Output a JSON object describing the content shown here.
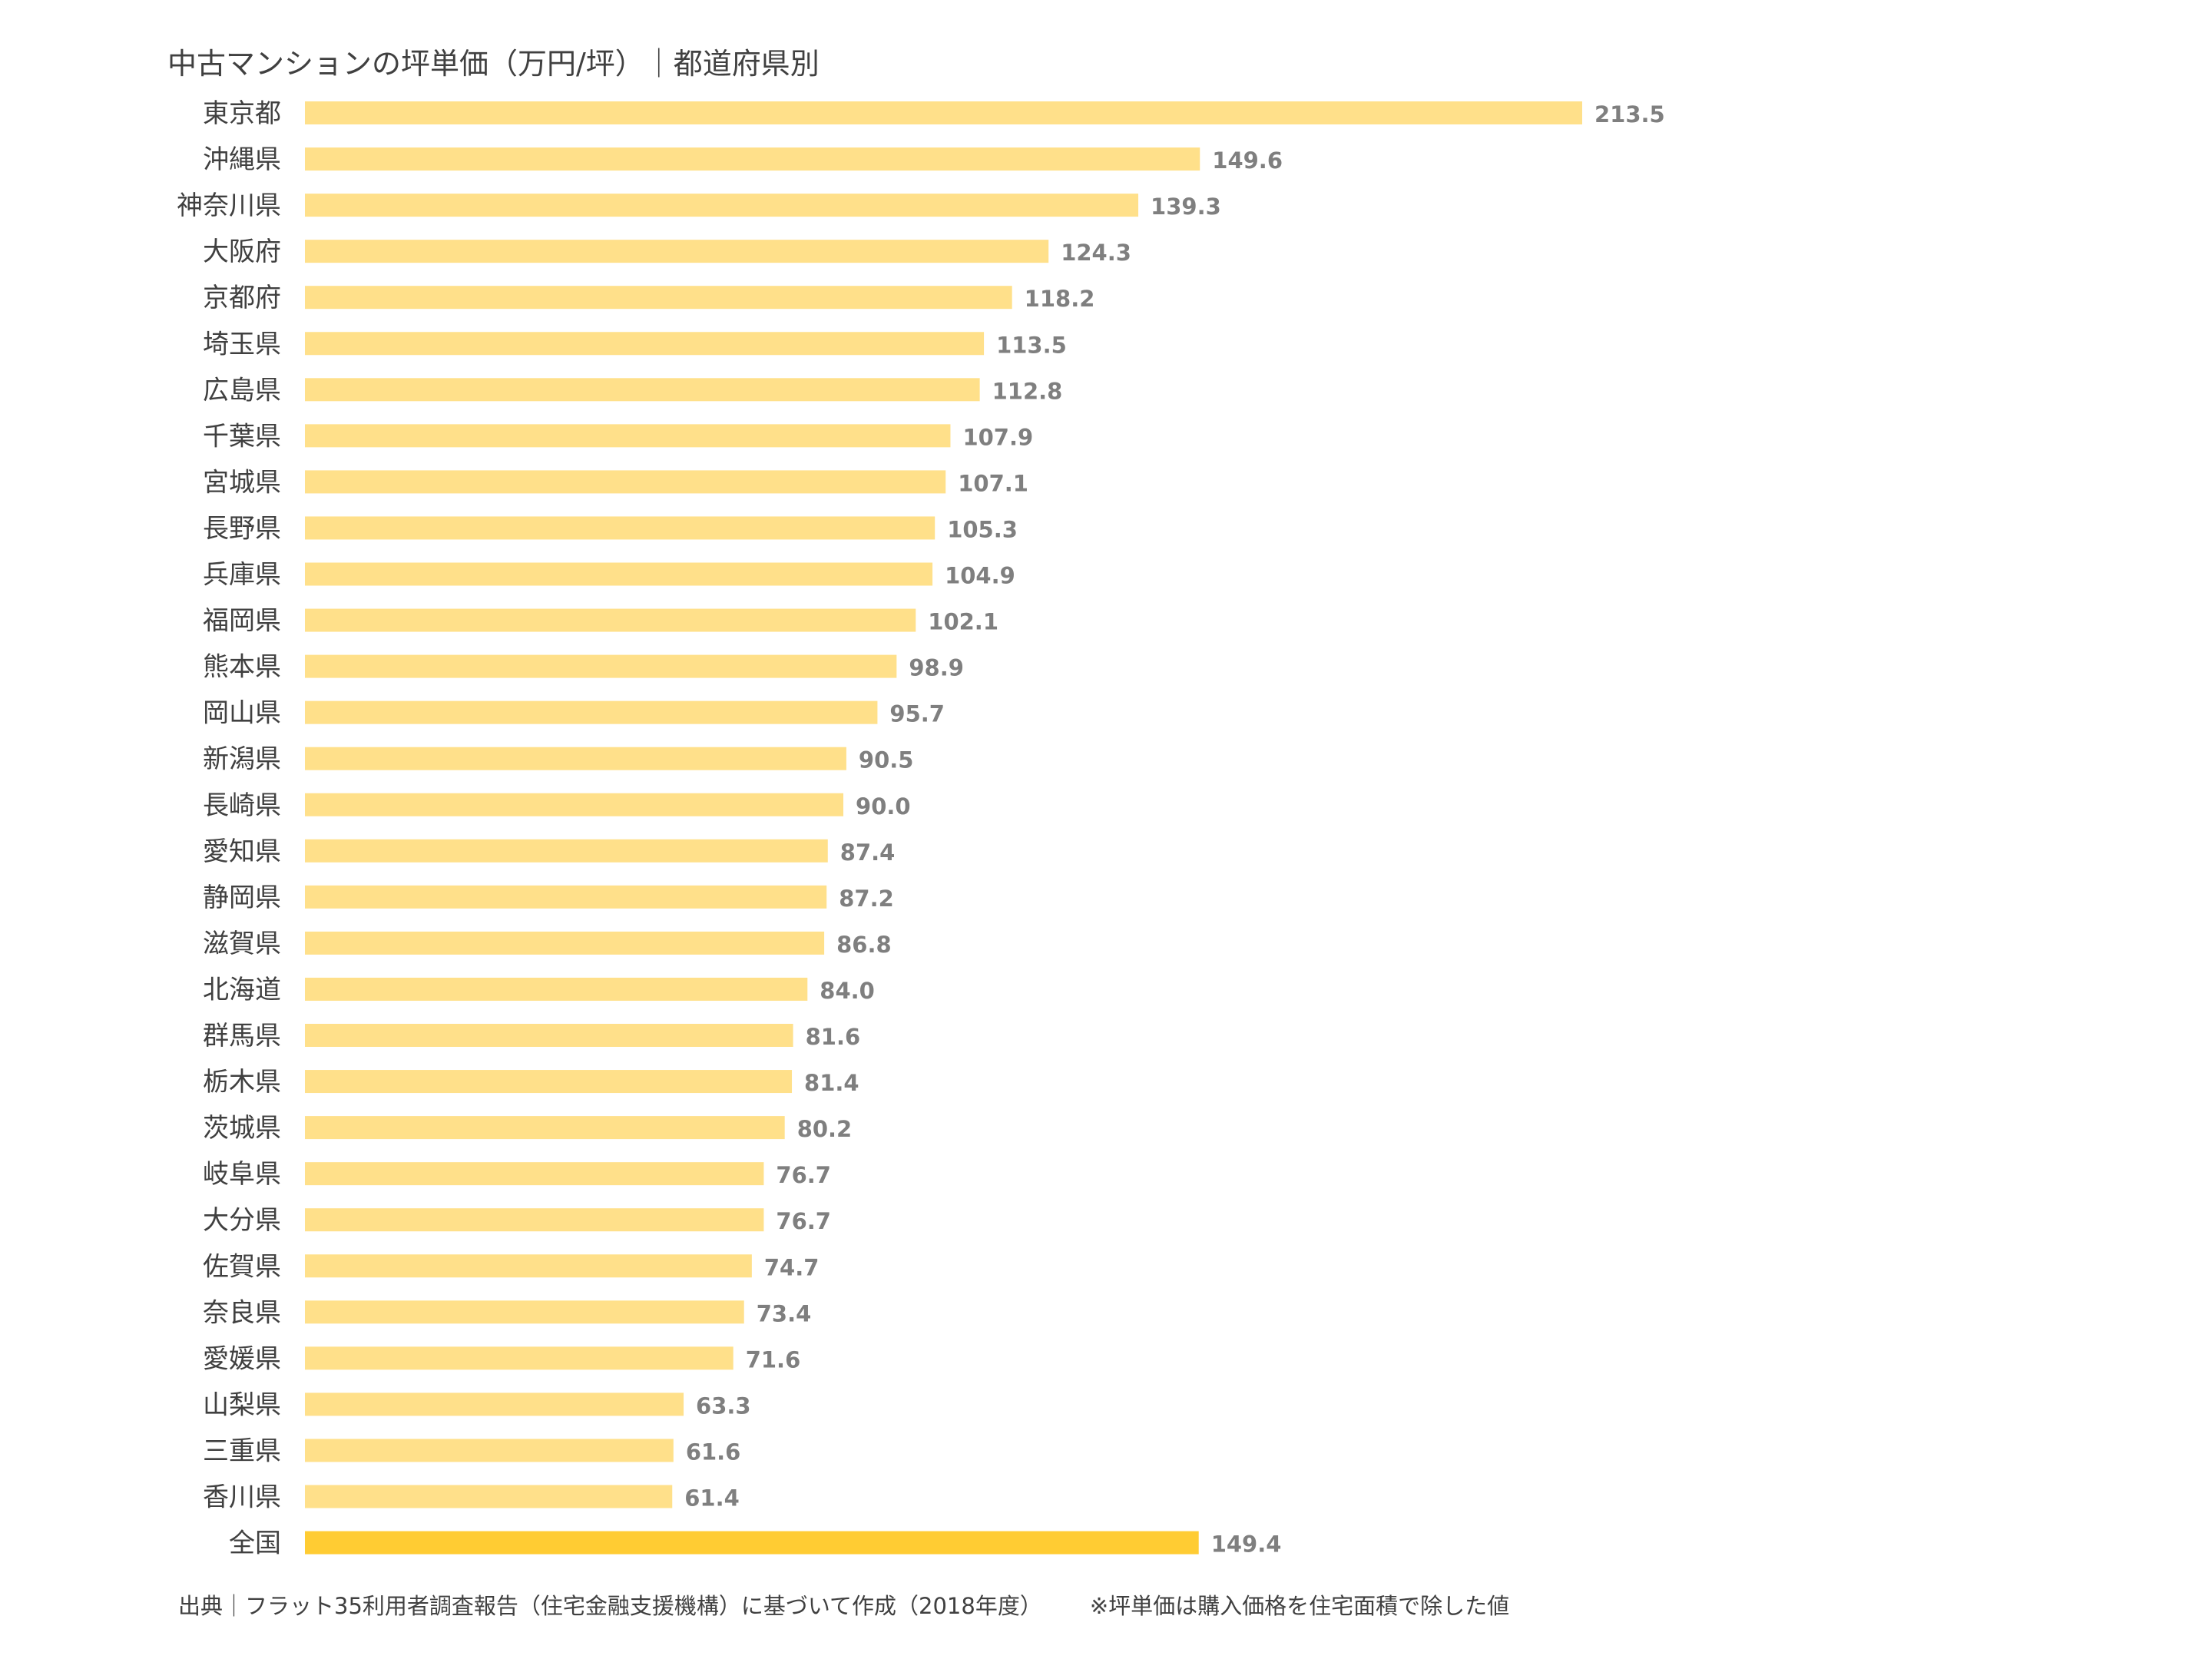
{
  "colors": {
    "bar": "#FFE08A",
    "highlight_bar": "#FFCC33",
    "category_text": "#404040",
    "value_text": "#7F7F7F"
  },
  "chart_data": {
    "type": "bar",
    "orientation": "horizontal",
    "title": "中古マンションの坪単価（万円/坪）｜都道府県別",
    "categories": [
      "東京都",
      "沖縄県",
      "神奈川県",
      "大阪府",
      "京都府",
      "埼玉県",
      "広島県",
      "千葉県",
      "宮城県",
      "長野県",
      "兵庫県",
      "福岡県",
      "熊本県",
      "岡山県",
      "新潟県",
      "長崎県",
      "愛知県",
      "静岡県",
      "滋賀県",
      "北海道",
      "群馬県",
      "栃木県",
      "茨城県",
      "岐阜県",
      "大分県",
      "佐賀県",
      "奈良県",
      "愛媛県",
      "山梨県",
      "三重県",
      "香川県",
      "全国"
    ],
    "values": [
      213.5,
      149.6,
      139.3,
      124.3,
      118.2,
      113.5,
      112.8,
      107.9,
      107.1,
      105.3,
      104.9,
      102.1,
      98.9,
      95.7,
      90.5,
      90.0,
      87.4,
      87.2,
      86.8,
      84.0,
      81.6,
      81.4,
      80.2,
      76.7,
      76.7,
      74.7,
      73.4,
      71.6,
      63.3,
      61.6,
      61.4,
      149.4
    ],
    "value_labels": [
      "213.5",
      "149.6",
      "139.3",
      "124.3",
      "118.2",
      "113.5",
      "112.8",
      "107.9",
      "107.1",
      "105.3",
      "104.9",
      "102.1",
      "98.9",
      "95.7",
      "90.5",
      "90.0",
      "87.4",
      "87.2",
      "86.8",
      "84.0",
      "81.6",
      "81.4",
      "80.2",
      "76.7",
      "76.7",
      "74.7",
      "73.4",
      "71.6",
      "63.3",
      "61.6",
      "61.4",
      "149.4"
    ],
    "highlight": "全国",
    "xlim": [
      0,
      213.5
    ],
    "axes_visible": false,
    "grid": false,
    "legend": false
  },
  "footer": {
    "source": "出典｜フラット35利用者調査報告（住宅金融支援機構）に基づいて作成（2018年度）",
    "note": "※坪単価は購入価格を住宅面積で除した値"
  }
}
